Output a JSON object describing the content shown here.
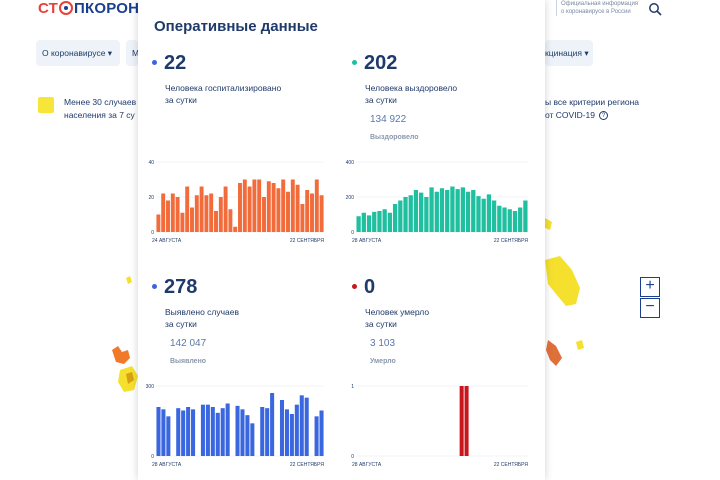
{
  "header": {
    "logo": {
      "part1": "СТ",
      "part2": "ПКОРОНАВИ"
    },
    "official_line1": "Официальная информация",
    "official_line2": "о коронавирусе в России"
  },
  "nav": {
    "item1": "О коронавирусе ▾",
    "item2": "М",
    "item3": "кцинация ▾"
  },
  "background_text": {
    "left_line1": "Менее 30 случаев",
    "left_line2": "населения за 7 су",
    "right_line1": "ы все критерии региона",
    "right_line2": "от COVID-19"
  },
  "zoom": {
    "plus": "+",
    "minus": "−"
  },
  "modal": {
    "title": "Оперативные данные",
    "hospitalized": {
      "value": "22",
      "desc_line1": "Человека госпитализировано",
      "desc_line2": "за сутки",
      "color": "#f26b3a"
    },
    "recovered": {
      "value": "202",
      "desc_line1": "Человека выздоровело",
      "desc_line2": "за сутки",
      "total": "134 922",
      "total_label": "Выздоровело",
      "color": "#1fbf9f"
    },
    "cases": {
      "value": "278",
      "desc_line1": "Выявлено случаев",
      "desc_line2": "за сутки",
      "total": "142 047",
      "total_label": "Выявлено",
      "color": "#3a66e0"
    },
    "deaths": {
      "value": "0",
      "desc_line1": "Человек умерло",
      "desc_line2": "за сутки",
      "total": "3 103",
      "total_label": "Умерло",
      "color": "#c8161d"
    }
  },
  "chart_data": [
    {
      "type": "bar",
      "name": "hospitalized",
      "color": "#f26b3a",
      "x_start": "24 АВГУСТА",
      "x_end": "22 СЕНТЯБРЯ",
      "y_ticks": [
        "40",
        "20",
        "0"
      ],
      "ylim": [
        0,
        40
      ],
      "values": [
        10,
        22,
        18,
        22,
        20,
        11,
        26,
        14,
        21,
        26,
        21,
        22,
        12,
        20,
        26,
        13,
        3,
        28,
        30,
        26,
        30,
        30,
        20,
        29,
        28,
        25,
        30,
        23,
        30,
        27,
        16,
        24,
        22,
        30,
        21
      ]
    },
    {
      "type": "bar",
      "name": "recovered",
      "color": "#1fbf9f",
      "x_start": "28 АВГУСТА",
      "x_end": "22 СЕНТЯБРЯ",
      "y_ticks": [
        "400",
        "200",
        "0"
      ],
      "ylim": [
        0,
        400
      ],
      "values": [
        90,
        110,
        95,
        115,
        120,
        130,
        110,
        160,
        180,
        200,
        210,
        240,
        225,
        200,
        255,
        230,
        250,
        240,
        260,
        245,
        255,
        230,
        240,
        205,
        190,
        215,
        180,
        150,
        140,
        130,
        120,
        140,
        180
      ]
    },
    {
      "type": "bar",
      "name": "cases",
      "color": "#3a66e0",
      "x_start": "28 АВГУСТА",
      "x_end": "22 СЕНТЯБРЯ",
      "y_ticks": [
        "300",
        "0"
      ],
      "ylim": [
        0,
        300
      ],
      "values": [
        210,
        200,
        170,
        0,
        205,
        195,
        210,
        200,
        0,
        220,
        220,
        210,
        185,
        205,
        225,
        0,
        215,
        200,
        175,
        140,
        0,
        210,
        205,
        270,
        0,
        240,
        200,
        180,
        220,
        260,
        250,
        0,
        170,
        195
      ]
    },
    {
      "type": "bar",
      "name": "deaths",
      "color": "#c8161d",
      "x_start": "28 АВГУСТА",
      "x_end": "22 СЕНТЯБРЯ",
      "y_ticks": [
        "1",
        "0"
      ],
      "ylim": [
        0,
        1
      ],
      "values": [
        0,
        0,
        0,
        0,
        0,
        0,
        0,
        0,
        0,
        0,
        0,
        0,
        0,
        0,
        0,
        0,
        0,
        0,
        0,
        0,
        0,
        1,
        1,
        0,
        0,
        0,
        0,
        0,
        0,
        0,
        0,
        0,
        0,
        0,
        0
      ]
    }
  ]
}
